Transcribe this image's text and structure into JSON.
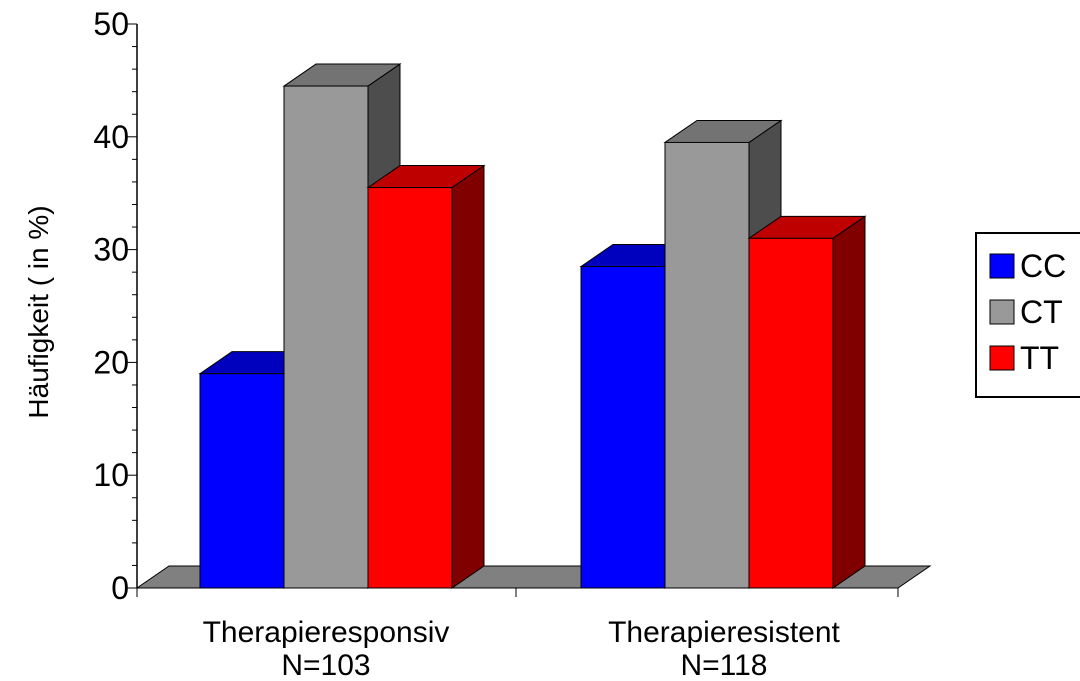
{
  "chart_data": {
    "type": "bar",
    "ylabel": "Häufigkeit ( in %)",
    "ylim": [
      0,
      50
    ],
    "yticks": [
      "0",
      "10",
      "20",
      "30",
      "40",
      "50"
    ],
    "categories": [
      {
        "line1": "Therapieresponsiv",
        "line2": "N=103"
      },
      {
        "line1": "Therapieresistent",
        "line2": "N=118"
      }
    ],
    "series": [
      {
        "name": "CC",
        "values": [
          19,
          28.5
        ],
        "color": "#0000ff"
      },
      {
        "name": "CT",
        "values": [
          44.5,
          39.5
        ],
        "color": "#999999"
      },
      {
        "name": "TT",
        "values": [
          35.5,
          31
        ],
        "color": "#ff0000"
      }
    ],
    "legend_position": "right",
    "style": "3d-column"
  }
}
